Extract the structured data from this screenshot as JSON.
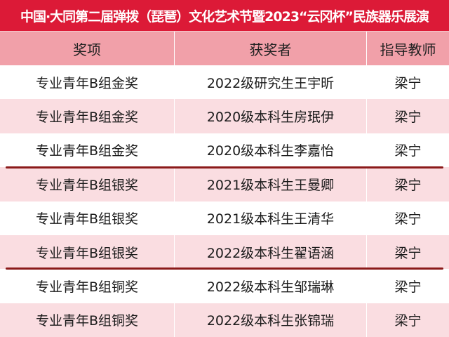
{
  "title": "中国·大同第二届弹拨（琵琶）文化艺术节暨2023“云冈杯”民族器乐展演",
  "columns": [
    "奖项",
    "获奖者",
    "指导教师"
  ],
  "rows": [
    [
      "专业青年B组金奖",
      "2022级研究生王宇昕",
      "梁宁"
    ],
    [
      "专业青年B组金奖",
      "2020级本科生房珉伊",
      "梁宁"
    ],
    [
      "专业青年B组金奖",
      "2020级本科生李嘉怡",
      "梁宁"
    ],
    [
      "专业青年B组银奖",
      "2021级本科生王曼卿",
      "梁宁"
    ],
    [
      "专业青年B组银奖",
      "2021级本科生王清华",
      "梁宁"
    ],
    [
      "专业青年B组银奖",
      "2022级本科生翟语涵",
      "梁宁"
    ],
    [
      "专业青年B组铜奖",
      "2022级本科生邹瑞琳",
      "梁宁"
    ],
    [
      "专业青年B组铜奖",
      "2022级本科生张锦瑞",
      "梁宁"
    ]
  ],
  "colors": {
    "title_bg": "#dc1a37",
    "header_bg": "#f1a0a9",
    "stripe": "#fadde1",
    "divider": "#8b1a1a"
  }
}
